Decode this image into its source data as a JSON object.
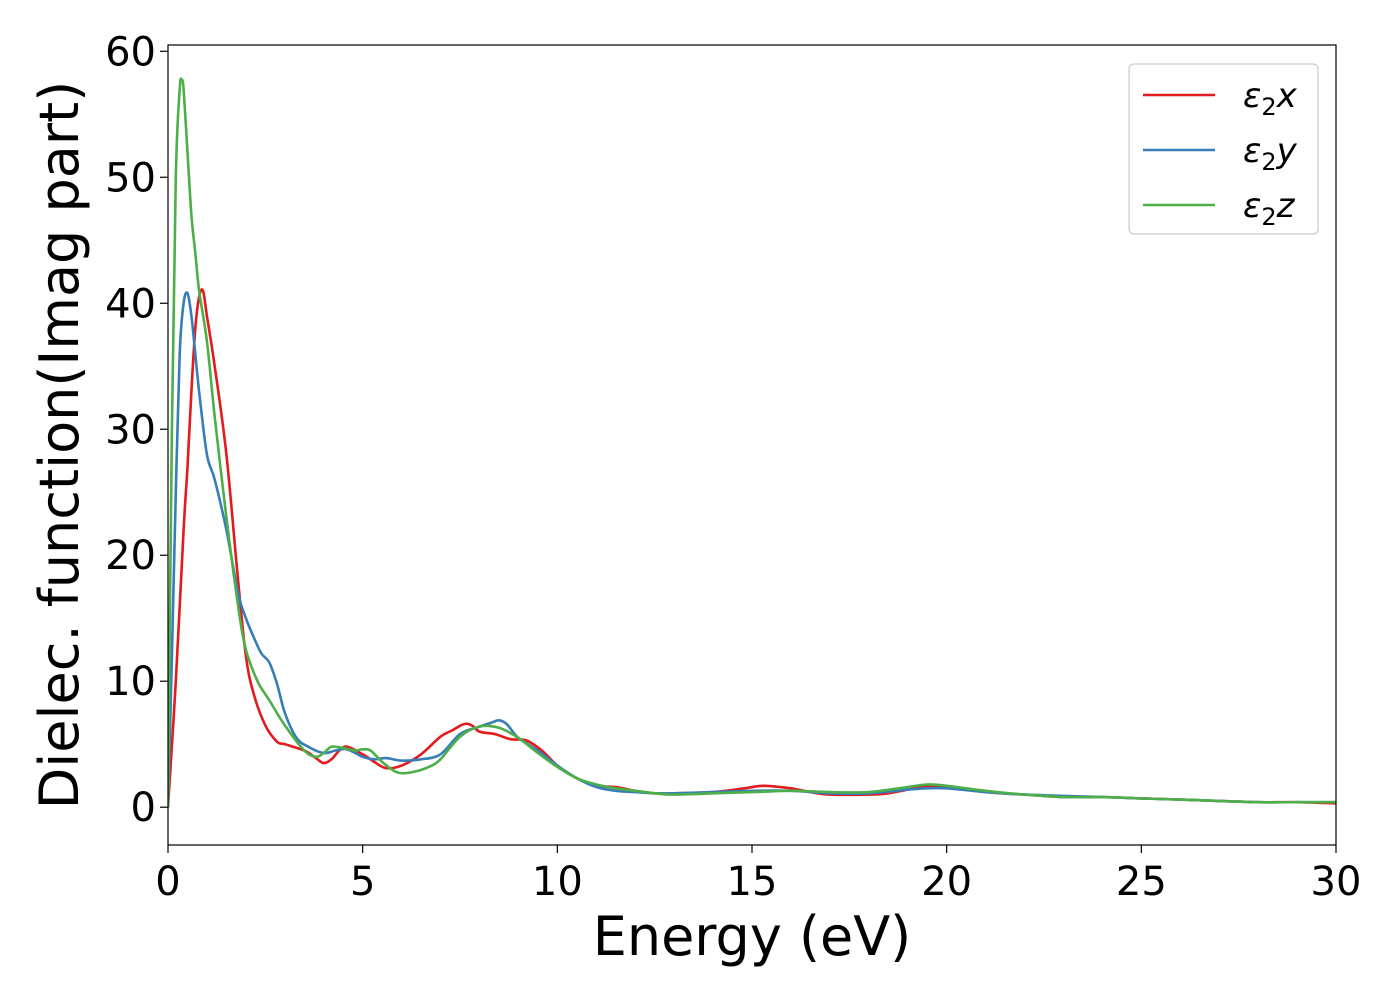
{
  "chart_data": {
    "type": "line",
    "title": "",
    "xlabel": "Energy (eV)",
    "ylabel": "Dielec. function(Imag part)",
    "xlim": [
      0,
      30
    ],
    "ylim": [
      -3,
      60.5
    ],
    "xticks": [
      0,
      5,
      10,
      15,
      20,
      25,
      30
    ],
    "yticks": [
      0,
      10,
      20,
      30,
      40,
      50,
      60
    ],
    "grid": false,
    "legend_position": "top-right",
    "series": [
      {
        "name": "ε2x",
        "legend_main": "ε",
        "legend_sub": "2",
        "legend_var": "x",
        "color": "#e41a1c",
        "x": [
          0,
          0.2,
          0.4,
          0.5,
          0.6,
          0.7,
          0.8,
          0.9,
          1.0,
          1.2,
          1.5,
          1.8,
          2.0,
          2.2,
          2.5,
          2.8,
          3.0,
          3.5,
          3.8,
          4.0,
          4.2,
          4.4,
          4.6,
          5.0,
          5.3,
          5.6,
          6.0,
          6.5,
          7.0,
          7.3,
          7.6,
          7.8,
          8.0,
          8.4,
          8.8,
          9.2,
          9.6,
          10.0,
          10.5,
          11.0,
          11.5,
          12.0,
          12.5,
          13.0,
          14.0,
          14.8,
          15.3,
          16.0,
          16.5,
          17.0,
          18.0,
          18.5,
          19.0,
          19.5,
          20.0,
          21.0,
          22.0,
          23.0,
          24.0,
          25.0,
          26.0,
          27.0,
          28.0,
          29.0,
          30.0
        ],
        "values": [
          0,
          10,
          22,
          27,
          33,
          38,
          40.5,
          41,
          39,
          35,
          28,
          18,
          12,
          9,
          6.5,
          5.2,
          5.0,
          4.5,
          3.9,
          3.5,
          3.8,
          4.5,
          4.8,
          4.2,
          3.6,
          3.1,
          3.3,
          4.2,
          5.6,
          6.1,
          6.6,
          6.5,
          6.0,
          5.8,
          5.4,
          5.3,
          4.5,
          3.3,
          2.3,
          1.7,
          1.6,
          1.3,
          1.1,
          1.1,
          1.2,
          1.5,
          1.7,
          1.5,
          1.2,
          1.0,
          1.0,
          1.1,
          1.4,
          1.7,
          1.6,
          1.2,
          1.0,
          0.8,
          0.8,
          0.7,
          0.6,
          0.5,
          0.4,
          0.4,
          0.3
        ]
      },
      {
        "name": "ε2y",
        "legend_main": "ε",
        "legend_sub": "2",
        "legend_var": "y",
        "color": "#377eb8",
        "x": [
          0,
          0.1,
          0.2,
          0.3,
          0.4,
          0.5,
          0.6,
          0.7,
          0.8,
          1.0,
          1.2,
          1.5,
          1.8,
          2.0,
          2.2,
          2.4,
          2.6,
          2.8,
          3.0,
          3.3,
          3.6,
          4.0,
          4.3,
          4.6,
          5.0,
          5.3,
          5.6,
          6.0,
          6.5,
          7.0,
          7.5,
          8.0,
          8.3,
          8.5,
          8.7,
          9.0,
          9.5,
          10.0,
          10.5,
          11.0,
          11.5,
          12.0,
          12.5,
          13.0,
          14.0,
          15.0,
          16.0,
          17.0,
          18.0,
          19.0,
          19.5,
          20.0,
          21.0,
          22.0,
          23.0,
          24.0,
          25.0,
          26.0,
          27.0,
          28.0,
          29.0,
          30.0
        ],
        "values": [
          0,
          12,
          25,
          36,
          40,
          40.8,
          39,
          36,
          33,
          28,
          26,
          22,
          17,
          15,
          13.5,
          12.2,
          11.5,
          9.8,
          7.5,
          5.5,
          4.8,
          4.3,
          4.5,
          4.6,
          4.0,
          3.8,
          3.9,
          3.7,
          3.8,
          4.2,
          5.8,
          6.4,
          6.7,
          6.9,
          6.6,
          5.5,
          4.5,
          3.3,
          2.3,
          1.6,
          1.3,
          1.2,
          1.1,
          1.1,
          1.2,
          1.3,
          1.3,
          1.1,
          1.1,
          1.4,
          1.5,
          1.5,
          1.2,
          1.0,
          0.9,
          0.8,
          0.7,
          0.6,
          0.5,
          0.4,
          0.4,
          0.4
        ]
      },
      {
        "name": "ε2z",
        "legend_main": "ε",
        "legend_sub": "2",
        "legend_var": "z",
        "color": "#4daf4a",
        "x": [
          0,
          0.1,
          0.2,
          0.3,
          0.35,
          0.4,
          0.5,
          0.6,
          0.7,
          0.8,
          1.0,
          1.2,
          1.5,
          1.8,
          2.0,
          2.3,
          2.6,
          3.0,
          3.5,
          3.8,
          4.0,
          4.2,
          4.5,
          4.8,
          5.0,
          5.2,
          5.5,
          5.8,
          6.0,
          6.3,
          6.7,
          7.0,
          7.5,
          8.0,
          8.5,
          9.0,
          9.5,
          10.0,
          10.5,
          11.0,
          11.5,
          12.0,
          12.5,
          13.0,
          14.0,
          15.0,
          16.0,
          17.0,
          18.0,
          19.0,
          19.5,
          20.0,
          21.0,
          22.0,
          23.0,
          24.0,
          25.0,
          26.0,
          27.0,
          28.0,
          29.0,
          30.0
        ],
        "values": [
          0,
          30,
          50,
          57,
          57.7,
          57,
          52,
          47,
          44,
          41,
          37,
          31,
          23,
          16,
          12.5,
          10,
          8.5,
          6.5,
          4.5,
          4.0,
          4.3,
          4.8,
          4.7,
          4.5,
          4.6,
          4.5,
          3.6,
          2.9,
          2.7,
          2.8,
          3.2,
          3.8,
          5.6,
          6.4,
          6.3,
          5.5,
          4.3,
          3.2,
          2.3,
          1.8,
          1.5,
          1.3,
          1.1,
          1.0,
          1.1,
          1.2,
          1.3,
          1.2,
          1.2,
          1.6,
          1.8,
          1.7,
          1.3,
          1.0,
          0.8,
          0.8,
          0.7,
          0.6,
          0.5,
          0.4,
          0.4,
          0.4
        ]
      }
    ]
  }
}
